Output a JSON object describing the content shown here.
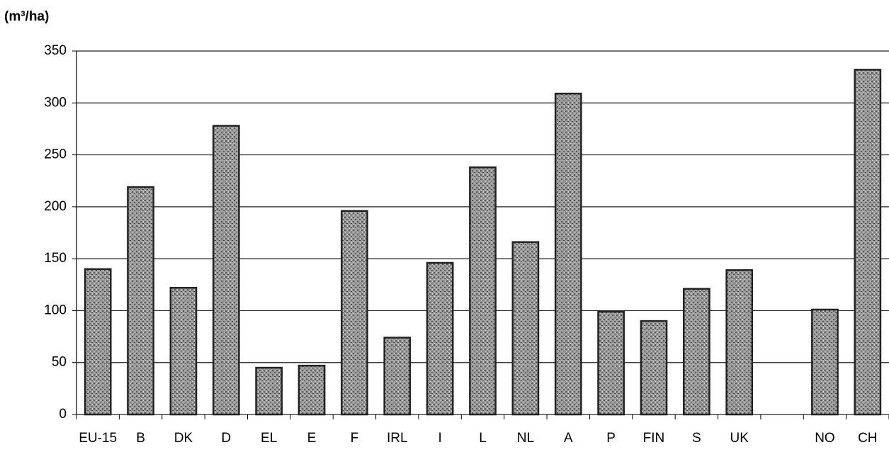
{
  "chart_data": {
    "type": "bar",
    "y_axis_label": "(m³/ha)",
    "categories": [
      "EU-15",
      "B",
      "DK",
      "D",
      "EL",
      "E",
      "F",
      "IRL",
      "I",
      "L",
      "NL",
      "A",
      "P",
      "FIN",
      "S",
      "UK",
      null,
      "NO",
      "CH"
    ],
    "values": [
      140,
      219,
      122,
      278,
      45,
      47,
      196,
      74,
      146,
      238,
      166,
      309,
      99,
      90,
      121,
      139,
      null,
      101,
      332
    ],
    "color": "#8c8c8c",
    "ylim": [
      0,
      350
    ],
    "yticks": [
      0,
      50,
      100,
      150,
      200,
      250,
      300,
      350
    ],
    "grid": true
  }
}
